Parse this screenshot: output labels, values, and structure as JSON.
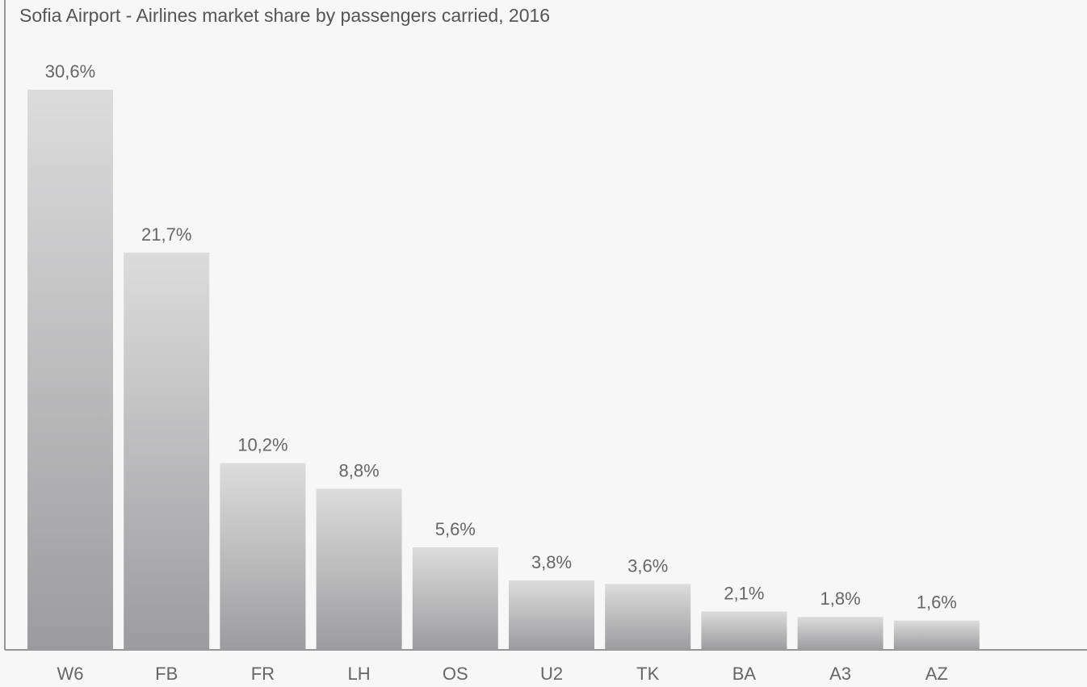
{
  "chart_data": {
    "type": "bar",
    "title": "Sofia Airport - Airlines market share by passengers carried, 2016",
    "xlabel": "",
    "ylabel": "",
    "categories": [
      "W6",
      "FB",
      "FR",
      "LH",
      "OS",
      "U2",
      "TK",
      "BA",
      "A3",
      "AZ"
    ],
    "values": [
      30.6,
      21.7,
      10.2,
      8.8,
      5.6,
      3.8,
      3.6,
      2.1,
      1.8,
      1.6
    ],
    "value_labels": [
      "30,6%",
      "21,7%",
      "10,2%",
      "8,8%",
      "5,6%",
      "3,8%",
      "3,6%",
      "2,1%",
      "1,8%",
      "1,6%"
    ],
    "ylim": [
      0,
      30.6
    ],
    "grid": false,
    "legend": "none",
    "colors": {
      "background": "#f7f7f7",
      "bar_top": "#dcdcdd",
      "bar_bottom": "#9c9c9e",
      "axis": "#777777",
      "text": "#666666",
      "title": "#555555"
    }
  }
}
